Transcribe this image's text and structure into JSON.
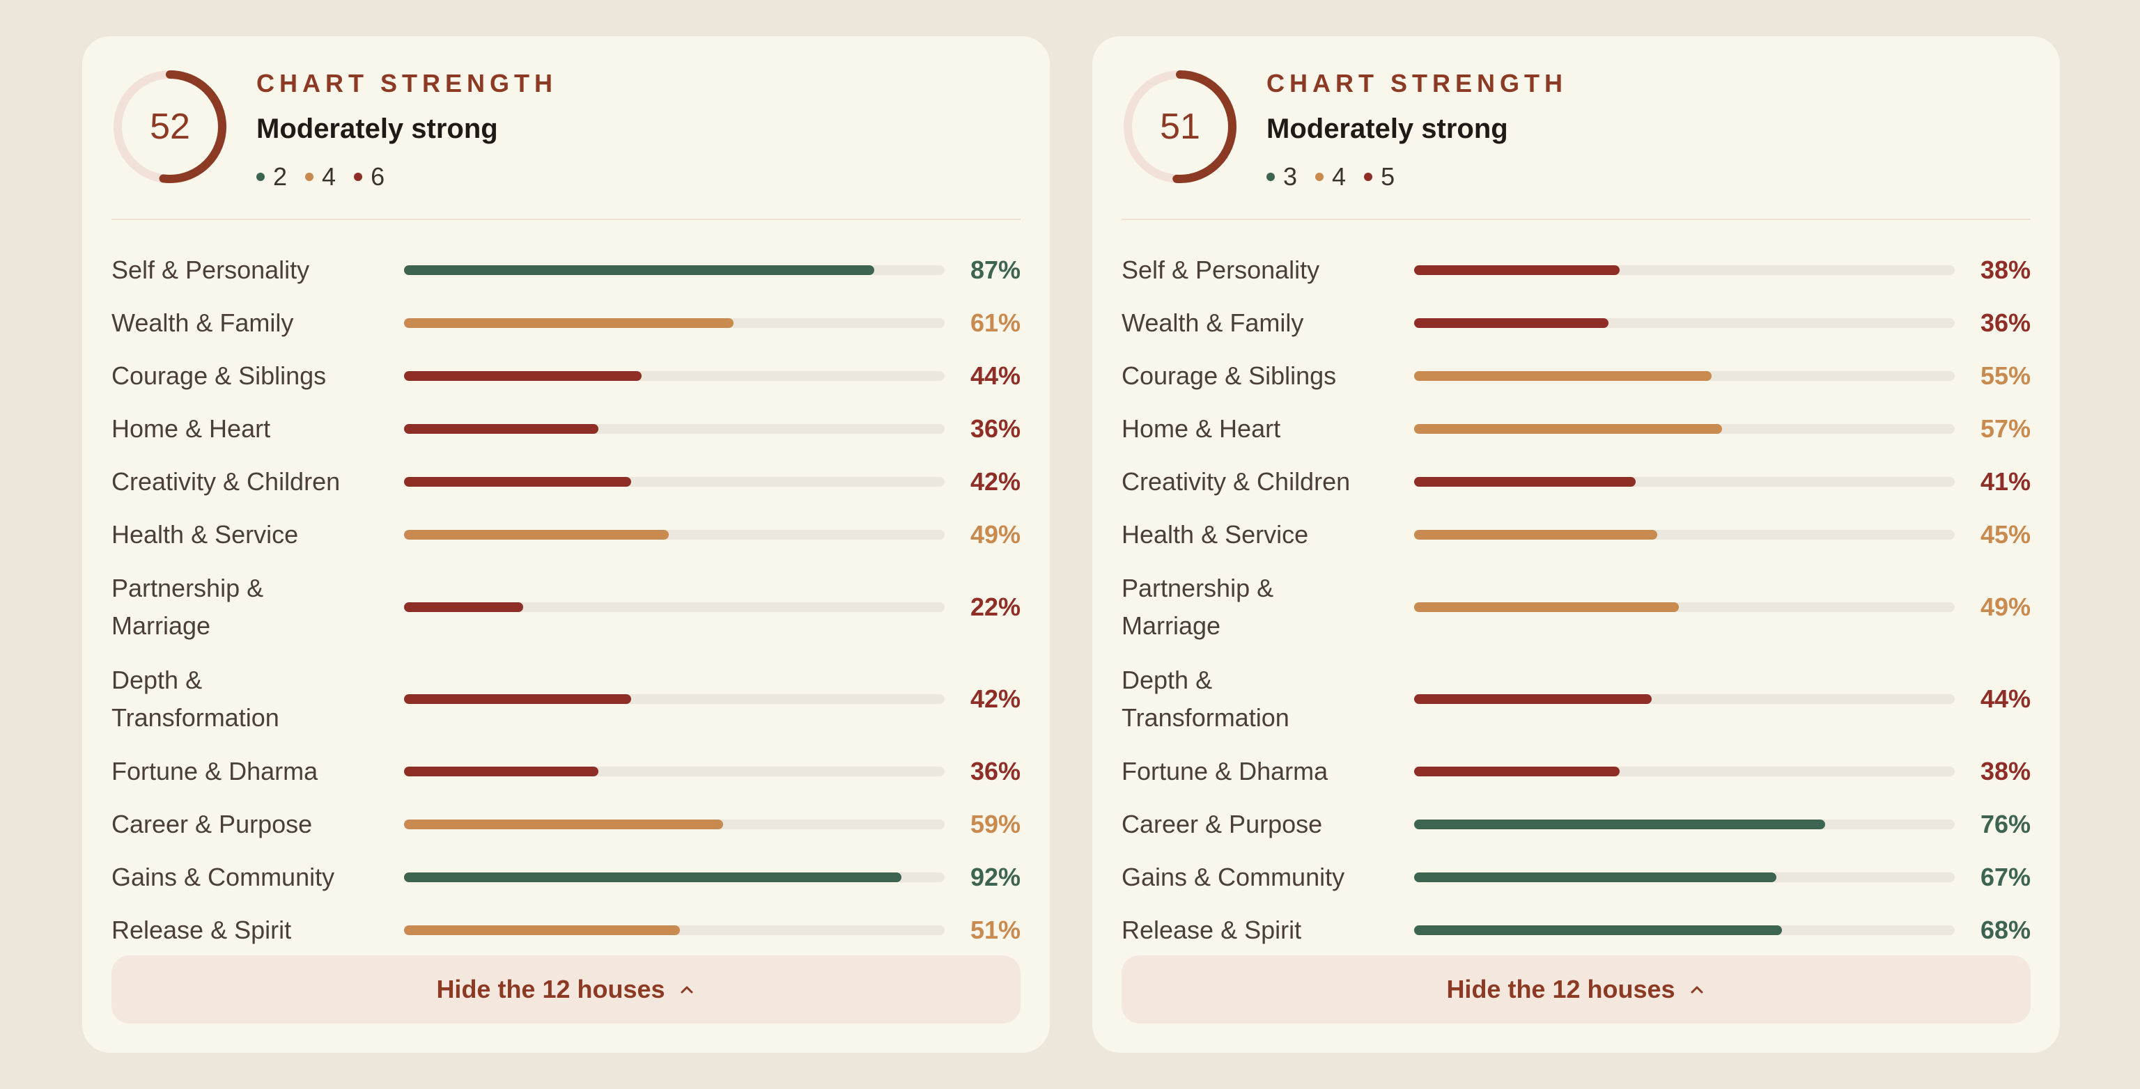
{
  "colors": {
    "strong": "#3c6451",
    "medium": "#c98a4f",
    "weak": "#8f2e26",
    "track": "#ebe7dc",
    "accent": "#8c3a23",
    "gauge_track": "#f2e1d8"
  },
  "cards": [
    {
      "score": "52",
      "score_fraction": 0.52,
      "kicker": "CHART STRENGTH",
      "verdict": "Moderately strong",
      "tally": [
        {
          "value": "2",
          "level": "strong"
        },
        {
          "value": "4",
          "level": "medium"
        },
        {
          "value": "6",
          "level": "weak"
        }
      ],
      "houses": [
        {
          "label": "Self & Personality",
          "pct": "87%",
          "value": 87,
          "level": "strong"
        },
        {
          "label": "Wealth & Family",
          "pct": "61%",
          "value": 61,
          "level": "medium"
        },
        {
          "label": "Courage & Siblings",
          "pct": "44%",
          "value": 44,
          "level": "weak"
        },
        {
          "label": "Home & Heart",
          "pct": "36%",
          "value": 36,
          "level": "weak"
        },
        {
          "label": "Creativity & Children",
          "pct": "42%",
          "value": 42,
          "level": "weak"
        },
        {
          "label": "Health & Service",
          "pct": "49%",
          "value": 49,
          "level": "medium"
        },
        {
          "label": "Partnership & Marriage",
          "pct": "22%",
          "value": 22,
          "level": "weak"
        },
        {
          "label": "Depth & Transformation",
          "pct": "42%",
          "value": 42,
          "level": "weak"
        },
        {
          "label": "Fortune & Dharma",
          "pct": "36%",
          "value": 36,
          "level": "weak"
        },
        {
          "label": "Career & Purpose",
          "pct": "59%",
          "value": 59,
          "level": "medium"
        },
        {
          "label": "Gains & Community",
          "pct": "92%",
          "value": 92,
          "level": "strong"
        },
        {
          "label": "Release & Spirit",
          "pct": "51%",
          "value": 51,
          "level": "medium"
        }
      ],
      "toggle_label": "Hide the 12 houses"
    },
    {
      "score": "51",
      "score_fraction": 0.51,
      "kicker": "CHART STRENGTH",
      "verdict": "Moderately strong",
      "tally": [
        {
          "value": "3",
          "level": "strong"
        },
        {
          "value": "4",
          "level": "medium"
        },
        {
          "value": "5",
          "level": "weak"
        }
      ],
      "houses": [
        {
          "label": "Self & Personality",
          "pct": "38%",
          "value": 38,
          "level": "weak"
        },
        {
          "label": "Wealth & Family",
          "pct": "36%",
          "value": 36,
          "level": "weak"
        },
        {
          "label": "Courage & Siblings",
          "pct": "55%",
          "value": 55,
          "level": "medium"
        },
        {
          "label": "Home & Heart",
          "pct": "57%",
          "value": 57,
          "level": "medium"
        },
        {
          "label": "Creativity & Children",
          "pct": "41%",
          "value": 41,
          "level": "weak"
        },
        {
          "label": "Health & Service",
          "pct": "45%",
          "value": 45,
          "level": "medium"
        },
        {
          "label": "Partnership & Marriage",
          "pct": "49%",
          "value": 49,
          "level": "medium"
        },
        {
          "label": "Depth & Transformation",
          "pct": "44%",
          "value": 44,
          "level": "weak"
        },
        {
          "label": "Fortune & Dharma",
          "pct": "38%",
          "value": 38,
          "level": "weak"
        },
        {
          "label": "Career & Purpose",
          "pct": "76%",
          "value": 76,
          "level": "strong"
        },
        {
          "label": "Gains & Community",
          "pct": "67%",
          "value": 67,
          "level": "strong"
        },
        {
          "label": "Release & Spirit",
          "pct": "68%",
          "value": 68,
          "level": "strong"
        }
      ],
      "toggle_label": "Hide the 12 houses"
    }
  ]
}
